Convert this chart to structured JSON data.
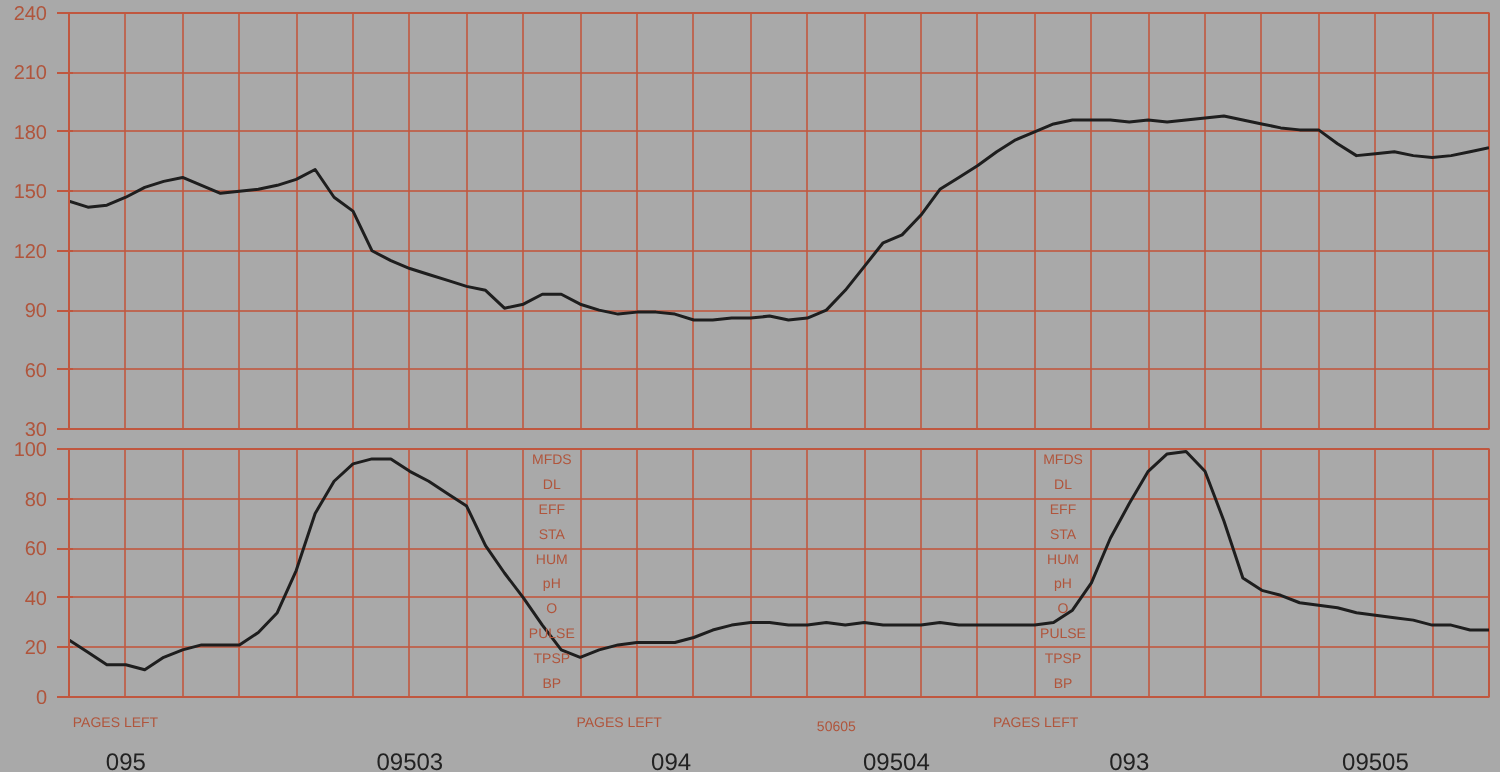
{
  "chart_data": [
    {
      "type": "line",
      "categories": [
        null,
        null,
        null,
        null,
        null,
        null,
        null,
        null,
        null,
        null,
        null,
        null,
        null,
        null,
        null,
        null,
        null,
        null,
        null,
        null,
        null,
        null,
        null,
        null,
        null,
        null,
        null,
        null,
        null,
        null,
        null,
        null,
        null,
        null,
        null,
        null,
        null,
        null,
        null,
        null,
        null,
        null,
        null,
        null,
        null,
        null,
        null,
        null,
        null,
        null,
        null,
        null,
        null,
        null,
        null,
        null,
        null,
        null,
        null,
        null,
        null,
        null,
        null,
        null,
        null,
        null,
        null,
        null,
        null,
        null,
        null,
        null,
        null,
        null,
        null,
        null
      ],
      "series": [
        {
          "color": "#1e1e1e",
          "values": [
            145,
            142,
            143,
            147,
            152,
            155,
            157,
            153,
            149,
            150,
            151,
            153,
            156,
            161,
            147,
            140,
            120,
            115,
            111,
            108,
            105,
            102,
            100,
            91,
            93,
            98,
            98,
            93,
            90,
            88,
            89,
            89,
            88,
            85,
            85,
            86,
            86,
            87,
            85,
            86,
            90,
            100,
            112,
            124,
            128,
            138,
            151,
            157,
            163,
            170,
            176,
            180,
            184,
            186,
            186,
            186,
            185,
            186,
            185,
            186,
            187,
            188,
            186,
            184,
            182,
            181,
            181,
            174,
            168,
            169,
            170,
            168,
            167,
            168,
            170,
            172
          ]
        }
      ],
      "ylim": [
        30,
        240
      ],
      "yticks": [
        30,
        60,
        90,
        120,
        150,
        180,
        210,
        240
      ],
      "grid": true,
      "tick_labels": "y"
    },
    {
      "type": "line",
      "categories": [
        null,
        null,
        null,
        null,
        null,
        null,
        null,
        null,
        null,
        null,
        null,
        null,
        null,
        null,
        null,
        null,
        null,
        null,
        null,
        null,
        null,
        null,
        null,
        null,
        null,
        null,
        null,
        null,
        null,
        null,
        null,
        null,
        null,
        null,
        null,
        null,
        null,
        null,
        null,
        null,
        null,
        null,
        null,
        null,
        null,
        null,
        null,
        null,
        null,
        null,
        null,
        null,
        null,
        null,
        null,
        null,
        null,
        null,
        null,
        null,
        null,
        null,
        null,
        null,
        null,
        null,
        null,
        null,
        null,
        null,
        null,
        null,
        null,
        null,
        null,
        null
      ],
      "series": [
        {
          "color": "#1e1e1e",
          "values": [
            23,
            18,
            13,
            13,
            11,
            16,
            19,
            21,
            21,
            21,
            26,
            34,
            51,
            74,
            87,
            94,
            96,
            96,
            91,
            87,
            82,
            77,
            61,
            50,
            40,
            29,
            19,
            16,
            19,
            21,
            22,
            22,
            22,
            24,
            27,
            29,
            30,
            30,
            29,
            29,
            30,
            29,
            30,
            29,
            29,
            29,
            30,
            29,
            29,
            29,
            29,
            29,
            30,
            35,
            46,
            64,
            78,
            91,
            98,
            99,
            91,
            71,
            48,
            43,
            41,
            38,
            37,
            36,
            34,
            33,
            32,
            31,
            29,
            29,
            27,
            27
          ]
        }
      ],
      "ylim": [
        0,
        100
      ],
      "yticks": [
        0,
        20,
        40,
        60,
        80,
        100
      ],
      "grid": true,
      "tick_labels": "y",
      "annotations": [
        "MFDS",
        "DL",
        "EFF",
        "STA",
        "HUM",
        "pH",
        "O",
        "PULSE",
        "TPSP",
        "BP",
        "MFDS",
        "DL",
        "EFF",
        "STA",
        "HUM",
        "pH",
        "O",
        "PULSE",
        "TPSP",
        "BP",
        "PAGES LEFT",
        "PAGES LEFT",
        "PAGES LEFT",
        "50605",
        "095",
        "09503",
        "094",
        "09504",
        "093",
        "09505"
      ]
    }
  ]
}
